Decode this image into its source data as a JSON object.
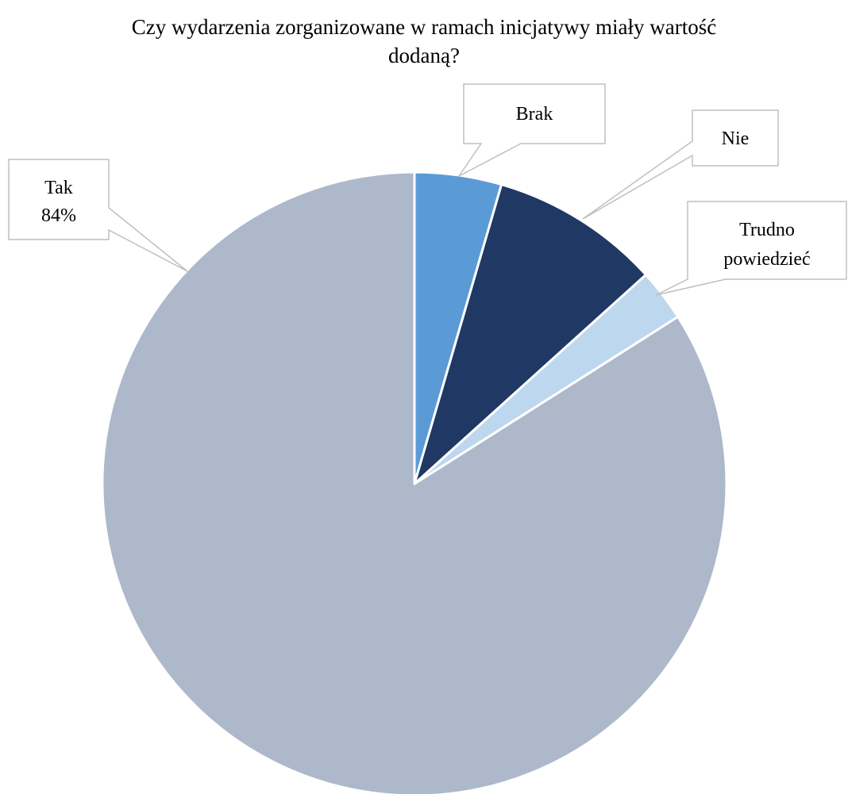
{
  "chart_data": {
    "type": "pie",
    "title_lines": [
      "Czy wydarzenia zorganizowane w ramach inicjatywy miały wartość",
      "dodaną?"
    ],
    "slices": [
      {
        "label": "Brak",
        "value": 4.5,
        "color": "#5B9BD5",
        "value_label": ""
      },
      {
        "label": "Nie",
        "value": 8.8,
        "color": "#203864",
        "value_label": ""
      },
      {
        "label": "Trudno powiedzieć",
        "value": 2.7,
        "color": "#BDD7EE",
        "value_label": ""
      },
      {
        "label": "Tak",
        "value": 84,
        "color": "#ADB9CA",
        "value_label": "84%"
      }
    ],
    "start_angle_deg": 0,
    "direction": "clockwise"
  },
  "callouts": {
    "brak": [
      "Brak"
    ],
    "nie": [
      "Nie"
    ],
    "trudno": [
      "Trudno",
      "powiedzieć"
    ],
    "tak": [
      "Tak",
      "84%"
    ]
  }
}
